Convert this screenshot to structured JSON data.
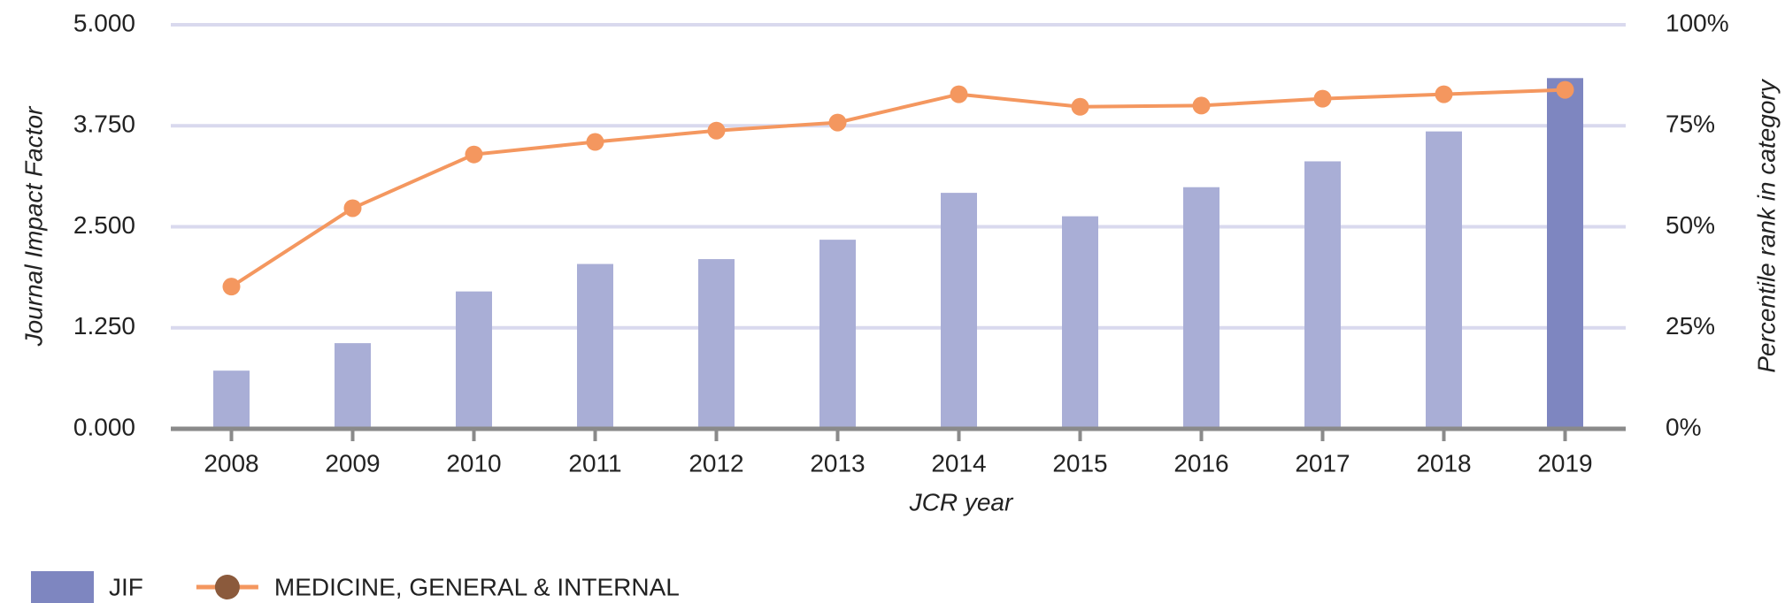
{
  "chart_data": {
    "type": "bar_line",
    "x_label": "JCR year",
    "y_label": "Journal Impact Factor",
    "y2_label": "Percentile rank in category",
    "categories": [
      "2008",
      "2009",
      "2010",
      "2011",
      "2012",
      "2013",
      "2014",
      "2015",
      "2016",
      "2017",
      "2018",
      "2019"
    ],
    "series": [
      {
        "name": "JIF",
        "type": "bar",
        "color": "#a9aed6",
        "colors": [
          "#a9aed6",
          "#a9aed6",
          "#a9aed6",
          "#a9aed6",
          "#a9aed6",
          "#a9aed6",
          "#a9aed6",
          "#a9aed6",
          "#a9aed6",
          "#a9aed6",
          "#a9aed6",
          "#7e86c0"
        ],
        "values": [
          0.72,
          1.06,
          1.7,
          2.04,
          2.1,
          2.34,
          2.92,
          2.63,
          2.99,
          3.31,
          3.68,
          4.34
        ]
      },
      {
        "name": "MEDICINE, GENERAL & INTERNAL",
        "type": "line",
        "axis": "y2",
        "color": "#f4975f",
        "marker_color": "#8b5a3c",
        "values": [
          35.2,
          54.6,
          67.9,
          71.0,
          73.8,
          75.8,
          82.8,
          79.7,
          80.0,
          81.7,
          82.8,
          83.9
        ]
      }
    ],
    "legend_color": "#7e86c0",
    "ylim": [
      0,
      5
    ],
    "yticks": [
      {
        "value": 0,
        "label": "0.000"
      },
      {
        "value": 1.25,
        "label": "1.250"
      },
      {
        "value": 2.5,
        "label": "2.500"
      },
      {
        "value": 3.75,
        "label": "3.750"
      },
      {
        "value": 5,
        "label": "5.000"
      }
    ],
    "y2lim": [
      0,
      100
    ],
    "y2ticks": [
      {
        "value": 0,
        "label": "0%"
      },
      {
        "value": 25,
        "label": "25%"
      },
      {
        "value": 50,
        "label": "50%"
      },
      {
        "value": 75,
        "label": "75%"
      },
      {
        "value": 100,
        "label": "100%"
      }
    ],
    "grid": true,
    "legend": "bottom-left"
  }
}
